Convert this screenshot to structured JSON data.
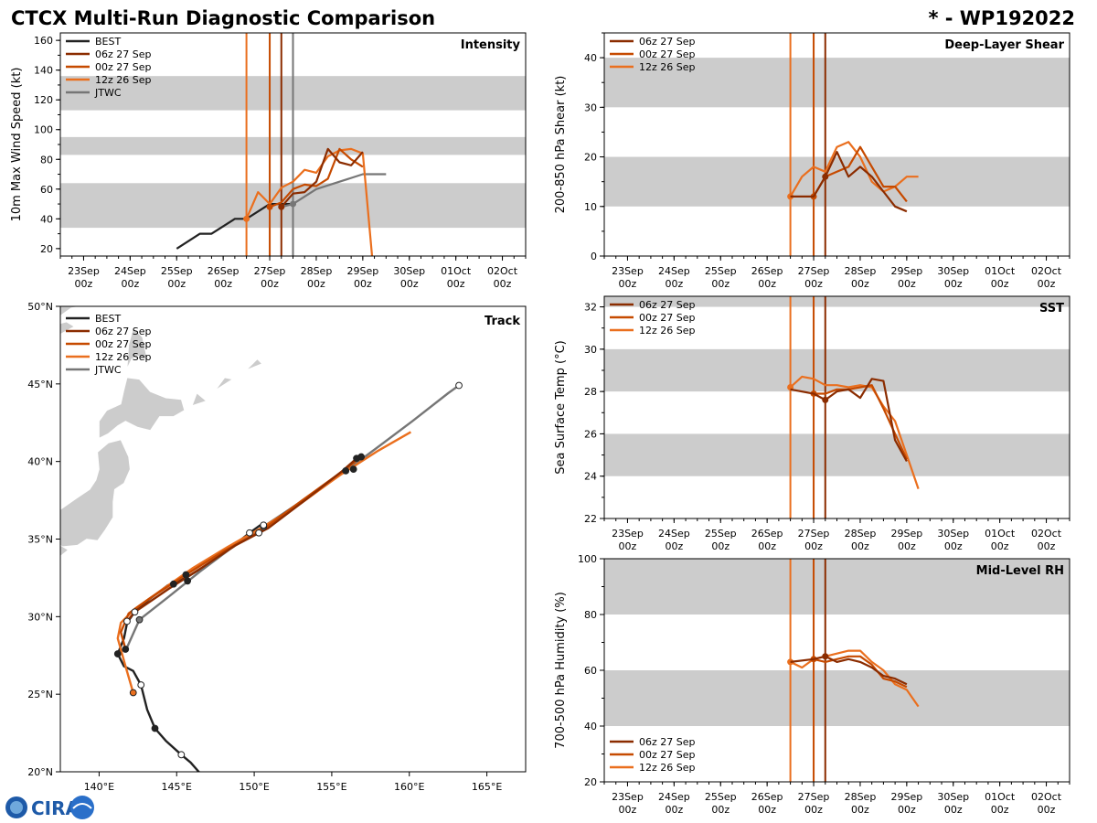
{
  "header": {
    "title": "CTCX Multi-Run Diagnostic Comparison",
    "storm": "* - WP192022"
  },
  "logo": {
    "text": "CIRA"
  },
  "colors": {
    "BEST": "#222222",
    "06z 27 Sep": "#8b2c00",
    "00z 27 Sep": "#c64a00",
    "12z 26 Sep": "#ea6f1e",
    "JTWC": "#767676",
    "band": "#cccccc"
  },
  "time_ticks": [
    "23Sep 00z",
    "24Sep 00z",
    "25Sep 00z",
    "26Sep 00z",
    "27Sep 00z",
    "28Sep 00z",
    "29Sep 00z",
    "30Sep 00z",
    "01Oct 00z",
    "02Oct 00z"
  ],
  "init_lines": [
    {
      "run": "12z 26 Sep",
      "t": 3.5
    },
    {
      "run": "00z 27 Sep",
      "t": 4.0
    },
    {
      "run": "06z 27 Sep",
      "t": 4.25
    }
  ],
  "chart_data": [
    {
      "id": "intensity",
      "type": "line",
      "title": "Intensity",
      "ylabel": "10m Max Wind Speed (kt)",
      "xlim": [
        -0.5,
        9.5
      ],
      "ylim": [
        15,
        165
      ],
      "yticks": [
        20,
        40,
        60,
        80,
        100,
        120,
        140,
        160
      ],
      "bands": [
        [
          34,
          64
        ],
        [
          83,
          95
        ],
        [
          113,
          136
        ]
      ],
      "legend": [
        "BEST",
        "06z 27 Sep",
        "00z 27 Sep",
        "12z 26 Sep",
        "JTWC"
      ],
      "extra_vline": {
        "run": "JTWC",
        "t": 4.5
      },
      "series": [
        {
          "name": "BEST",
          "t": [
            2.0,
            2.5,
            2.75,
            3.25,
            3.5,
            4.0,
            4.25,
            4.5
          ],
          "y": [
            20,
            30,
            30,
            40,
            40,
            50,
            50,
            50
          ],
          "markers": []
        },
        {
          "name": "JTWC",
          "t": [
            4.25,
            4.5,
            5.0,
            5.5,
            6.0,
            6.5
          ],
          "y": [
            48,
            50,
            60,
            65,
            70,
            70
          ],
          "markers": [
            {
              "t": 4.5,
              "y": 50
            }
          ]
        },
        {
          "name": "12z 26 Sep",
          "t": [
            3.5,
            3.75,
            4.0,
            4.25,
            4.5,
            4.75,
            5.0,
            5.25,
            5.5,
            5.75,
            6.0,
            6.2
          ],
          "y": [
            40,
            58,
            50,
            61,
            65,
            73,
            71,
            82,
            86,
            87,
            84,
            15
          ],
          "markers": [
            {
              "t": 3.5,
              "y": 40
            }
          ]
        },
        {
          "name": "00z 27 Sep",
          "t": [
            4.0,
            4.25,
            4.5,
            4.75,
            5.0,
            5.25,
            5.5,
            5.75,
            6.0
          ],
          "y": [
            48,
            51,
            60,
            63,
            62,
            67,
            87,
            80,
            75
          ],
          "markers": [
            {
              "t": 4.0,
              "y": 48
            }
          ]
        },
        {
          "name": "06z 27 Sep",
          "t": [
            4.25,
            4.5,
            4.75,
            5.0,
            5.25,
            5.5,
            5.75,
            6.0
          ],
          "y": [
            48,
            57,
            58,
            65,
            87,
            78,
            76,
            85
          ],
          "markers": [
            {
              "t": 4.25,
              "y": 48
            }
          ]
        }
      ]
    },
    {
      "id": "shear",
      "type": "line",
      "title": "Deep-Layer Shear",
      "ylabel": "200-850 hPa Shear (kt)",
      "xlim": [
        -0.5,
        9.5
      ],
      "ylim": [
        0,
        45
      ],
      "yticks": [
        0,
        10,
        20,
        30,
        40
      ],
      "bands": [
        [
          10,
          20
        ],
        [
          30,
          40
        ]
      ],
      "legend": [
        "06z 27 Sep",
        "00z 27 Sep",
        "12z 26 Sep"
      ],
      "series": [
        {
          "name": "12z 26 Sep",
          "t": [
            3.5,
            3.75,
            4.0,
            4.25,
            4.5,
            4.75,
            5.0,
            5.25,
            5.5,
            5.75,
            6.0,
            6.25
          ],
          "y": [
            12,
            16,
            18,
            17,
            22,
            23,
            20,
            15,
            13,
            14,
            16,
            16
          ],
          "markers": [
            {
              "t": 3.5,
              "y": 12
            }
          ]
        },
        {
          "name": "00z 27 Sep",
          "t": [
            4.0,
            4.25,
            4.5,
            4.75,
            5.0,
            5.25,
            5.5,
            5.75,
            6.0
          ],
          "y": [
            12,
            16,
            17,
            18,
            22,
            18,
            14,
            14,
            11
          ],
          "markers": [
            {
              "t": 4.0,
              "y": 12
            }
          ]
        },
        {
          "name": "06z 27 Sep",
          "t": [
            3.5,
            4.0,
            4.25,
            4.5,
            4.75,
            5.0,
            5.25,
            5.5,
            5.75,
            6.0
          ],
          "y": [
            12,
            12,
            16,
            21,
            16,
            18,
            16,
            13,
            10,
            9
          ],
          "markers": [
            {
              "t": 4.25,
              "y": 16
            }
          ]
        }
      ]
    },
    {
      "id": "sst",
      "type": "line",
      "title": "SST",
      "ylabel": "Sea Surface Temp (°C)",
      "xlim": [
        -0.5,
        9.5
      ],
      "ylim": [
        22,
        32.5
      ],
      "yticks": [
        22,
        24,
        26,
        28,
        30,
        32
      ],
      "bands": [
        [
          24,
          26
        ],
        [
          28,
          30
        ],
        [
          32,
          33
        ]
      ],
      "legend": [
        "06z 27 Sep",
        "00z 27 Sep",
        "12z 26 Sep"
      ],
      "series": [
        {
          "name": "12z 26 Sep",
          "t": [
            3.5,
            3.75,
            4.0,
            4.25,
            4.5,
            4.75,
            5.0,
            5.25,
            5.5,
            5.75,
            6.0,
            6.25
          ],
          "y": [
            28.2,
            28.7,
            28.6,
            28.3,
            28.3,
            28.2,
            28.3,
            28.2,
            27.3,
            26.6,
            25.0,
            23.4
          ],
          "markers": [
            {
              "t": 3.5,
              "y": 28.2
            }
          ]
        },
        {
          "name": "00z 27 Sep",
          "t": [
            4.0,
            4.25,
            4.5,
            4.75,
            5.0,
            5.25,
            5.5,
            5.75,
            6.0
          ],
          "y": [
            27.9,
            27.9,
            28.1,
            28.1,
            28.2,
            28.3,
            27.2,
            26.0,
            24.8
          ],
          "markers": [
            {
              "t": 4.0,
              "y": 27.9
            }
          ]
        },
        {
          "name": "06z 27 Sep",
          "t": [
            3.5,
            4.0,
            4.25,
            4.5,
            4.75,
            5.0,
            5.25,
            5.5,
            5.75,
            6.0
          ],
          "y": [
            28.1,
            27.9,
            27.6,
            28.0,
            28.1,
            27.7,
            28.6,
            28.5,
            25.7,
            24.7
          ],
          "markers": [
            {
              "t": 4.25,
              "y": 27.6
            }
          ]
        }
      ]
    },
    {
      "id": "rh",
      "type": "line",
      "title": "Mid-Level RH",
      "ylabel": "700-500 hPa Humidity (%)",
      "xlim": [
        -0.5,
        9.5
      ],
      "ylim": [
        20,
        100
      ],
      "yticks": [
        20,
        40,
        60,
        80,
        100
      ],
      "bands": [
        [
          40,
          60
        ],
        [
          80,
          100
        ]
      ],
      "legend": [
        "06z 27 Sep",
        "00z 27 Sep",
        "12z 26 Sep"
      ],
      "legend_pos": "bottom-left",
      "series": [
        {
          "name": "12z 26 Sep",
          "t": [
            3.5,
            3.75,
            4.0,
            4.25,
            4.5,
            4.75,
            5.0,
            5.25,
            5.5,
            5.75,
            6.0,
            6.25
          ],
          "y": [
            63,
            61,
            64,
            65,
            66,
            67,
            67,
            63,
            60,
            55,
            53,
            47
          ],
          "markers": [
            {
              "t": 3.5,
              "y": 63
            }
          ]
        },
        {
          "name": "00z 27 Sep",
          "t": [
            4.0,
            4.25,
            4.5,
            4.75,
            5.0,
            5.25,
            5.5,
            5.75,
            6.0
          ],
          "y": [
            64,
            63,
            64,
            65,
            65,
            62,
            57,
            56,
            54
          ],
          "markers": [
            {
              "t": 4.0,
              "y": 64
            }
          ]
        },
        {
          "name": "06z 27 Sep",
          "t": [
            3.5,
            4.0,
            4.25,
            4.5,
            4.75,
            5.0,
            5.25,
            5.5,
            5.75,
            6.0
          ],
          "y": [
            63,
            64,
            65,
            63,
            64,
            63,
            61,
            58,
            57,
            55
          ],
          "markers": [
            {
              "t": 4.25,
              "y": 65
            }
          ]
        }
      ]
    },
    {
      "id": "track",
      "type": "scatter",
      "title": "Track",
      "xlim": [
        137.5,
        167.5
      ],
      "ylim": [
        20,
        50
      ],
      "xticks": [
        140,
        145,
        150,
        155,
        160,
        165
      ],
      "xticklabels": [
        "140°E",
        "145°E",
        "150°E",
        "155°E",
        "160°E",
        "165°E"
      ],
      "yticks": [
        20,
        25,
        30,
        35,
        40,
        45,
        50
      ],
      "yticklabels": [
        "20°N",
        "25°N",
        "30°N",
        "35°N",
        "40°N",
        "45°N",
        "50°N"
      ],
      "legend": [
        "BEST",
        "06z 27 Sep",
        "00z 27 Sep",
        "12z 26 Sep",
        "JTWC"
      ],
      "series": [
        {
          "name": "BEST",
          "lon": [
            146.6,
            145.9,
            145.3,
            144.3,
            143.6,
            143.1,
            142.7,
            142.2,
            141.6,
            141.2,
            141.6,
            141.8,
            142.3,
            143.2,
            144.4,
            145.6,
            146.9,
            148.2,
            149.7,
            150.4
          ],
          "lat": [
            19.8,
            20.6,
            21.1,
            22.0,
            22.8,
            24.0,
            25.6,
            26.5,
            26.8,
            27.6,
            28.6,
            29.6,
            30.3,
            31.1,
            32.0,
            32.5,
            33.3,
            34.2,
            35.4,
            35.9
          ],
          "markers": [
            {
              "lon": 145.3,
              "lat": 21.1,
              "open": true
            },
            {
              "lon": 143.6,
              "lat": 22.8,
              "open": false
            },
            {
              "lon": 142.7,
              "lat": 25.6,
              "open": true
            },
            {
              "lon": 141.2,
              "lat": 27.6,
              "open": false
            },
            {
              "lon": 141.8,
              "lat": 29.7,
              "open": true
            },
            {
              "lon": 144.8,
              "lat": 32.1,
              "open": false
            },
            {
              "lon": 149.7,
              "lat": 35.4,
              "open": true
            }
          ]
        },
        {
          "name": "JTWC",
          "lon": [
            141.7,
            142.6,
            144.5,
            146.5,
            148.5,
            150.6,
            153.0,
            155.5,
            157.8,
            160.2,
            162.5,
            163.2
          ],
          "lat": [
            27.8,
            29.8,
            31.3,
            32.9,
            34.4,
            35.8,
            37.4,
            39.1,
            40.8,
            42.6,
            44.4,
            44.9
          ],
          "markers": [
            {
              "lon": 142.6,
              "lat": 29.8,
              "open": false
            },
            {
              "lon": 150.6,
              "lat": 35.8,
              "open": false
            },
            {
              "lon": 163.2,
              "lat": 44.9,
              "open": true
            }
          ]
        },
        {
          "name": "12z 26 Sep",
          "lon": [
            142.2,
            141.7,
            141.2,
            141.4,
            142.3,
            144.0,
            146.0,
            148.3,
            150.6,
            153.0,
            155.5,
            158.0,
            160.1
          ],
          "lat": [
            25.1,
            26.8,
            28.6,
            29.6,
            30.5,
            31.7,
            33.1,
            34.5,
            35.8,
            37.3,
            39.1,
            40.7,
            41.9
          ],
          "markers": [
            {
              "lon": 142.2,
              "lat": 25.1,
              "open": false
            },
            {
              "lon": 150.6,
              "lat": 35.9,
              "open": true
            }
          ]
        },
        {
          "name": "00z 27 Sep",
          "lon": [
            141.7,
            141.4,
            141.9,
            143.3,
            145.6,
            148.0,
            150.4,
            153.1,
            155.6,
            156.9
          ],
          "lat": [
            27.9,
            29.0,
            30.2,
            31.2,
            32.7,
            34.2,
            35.5,
            37.5,
            39.3,
            40.3
          ],
          "markers": [
            {
              "lon": 141.7,
              "lat": 27.9,
              "open": false
            },
            {
              "lon": 145.6,
              "lat": 32.7,
              "open": false
            },
            {
              "lon": 150.3,
              "lat": 35.4,
              "open": true
            },
            {
              "lon": 156.9,
              "lat": 40.3,
              "open": false
            }
          ]
        },
        {
          "name": "06z 27 Sep",
          "lon": [
            141.8,
            142.3,
            144.5,
            146.7,
            148.8,
            150.9,
            153.4,
            155.7,
            156.6
          ],
          "lat": [
            29.7,
            30.3,
            31.8,
            33.2,
            34.6,
            35.7,
            37.6,
            39.4,
            40.2
          ],
          "markers": [
            {
              "lon": 142.3,
              "lat": 30.3,
              "open": true
            },
            {
              "lon": 156.6,
              "lat": 40.2,
              "open": false
            },
            {
              "lon": 156.4,
              "lat": 39.5,
              "open": false
            },
            {
              "lon": 145.7,
              "lat": 32.3,
              "open": false
            },
            {
              "lon": 155.9,
              "lat": 39.4,
              "open": false
            }
          ]
        }
      ]
    }
  ]
}
